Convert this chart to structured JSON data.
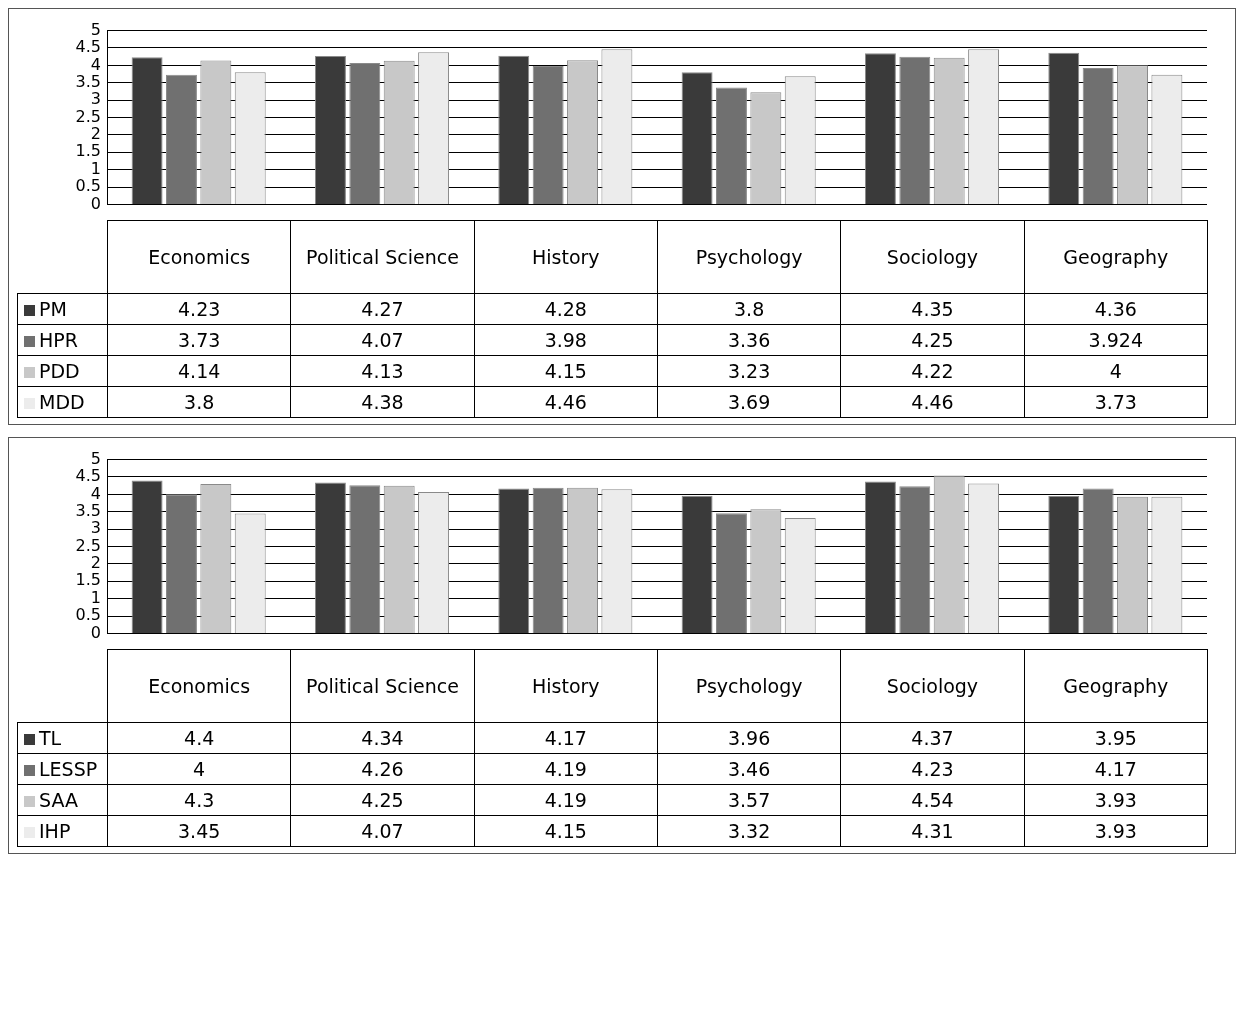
{
  "chart_data": [
    {
      "type": "bar",
      "categories": [
        "Economics",
        "Political Science",
        "History",
        "Psychology",
        "Sociology",
        "Geography"
      ],
      "series": [
        {
          "name": "PM",
          "color": "#3a3a3a",
          "values": [
            4.23,
            4.27,
            4.28,
            3.8,
            4.35,
            4.36
          ]
        },
        {
          "name": "HPR",
          "color": "#707070",
          "values": [
            3.73,
            4.07,
            3.98,
            3.36,
            4.25,
            3.924
          ]
        },
        {
          "name": "PDD",
          "color": "#c8c8c8",
          "values": [
            4.14,
            4.13,
            4.15,
            3.23,
            4.22,
            4
          ]
        },
        {
          "name": "MDD",
          "color": "#ececec",
          "values": [
            3.8,
            4.38,
            4.46,
            3.69,
            4.46,
            3.73
          ]
        }
      ],
      "ylim": [
        0,
        5
      ],
      "yticks": [
        0,
        0.5,
        1,
        1.5,
        2,
        2.5,
        3,
        3.5,
        4,
        4.5,
        5
      ],
      "grid": "y",
      "legend": "bottom",
      "data_labels": true
    },
    {
      "type": "bar",
      "categories": [
        "Economics",
        "Political Science",
        "History",
        "Psychology",
        "Sociology",
        "Geography"
      ],
      "series": [
        {
          "name": "TL",
          "color": "#3a3a3a",
          "values": [
            4.4,
            4.34,
            4.17,
            3.96,
            4.37,
            3.95
          ]
        },
        {
          "name": "LESSP",
          "color": "#707070",
          "values": [
            4,
            4.26,
            4.19,
            3.46,
            4.23,
            4.17
          ]
        },
        {
          "name": "SAA",
          "color": "#c8c8c8",
          "values": [
            4.3,
            4.25,
            4.19,
            3.57,
            4.54,
            3.93
          ]
        },
        {
          "name": "IHP",
          "color": "#ececec",
          "values": [
            3.45,
            4.07,
            4.15,
            3.32,
            4.31,
            3.93
          ]
        }
      ],
      "ylim": [
        0,
        5
      ],
      "yticks": [
        0,
        0.5,
        1,
        1.5,
        2,
        2.5,
        3,
        3.5,
        4,
        4.5,
        5
      ],
      "grid": "y",
      "legend": "bottom",
      "data_labels": true
    }
  ]
}
